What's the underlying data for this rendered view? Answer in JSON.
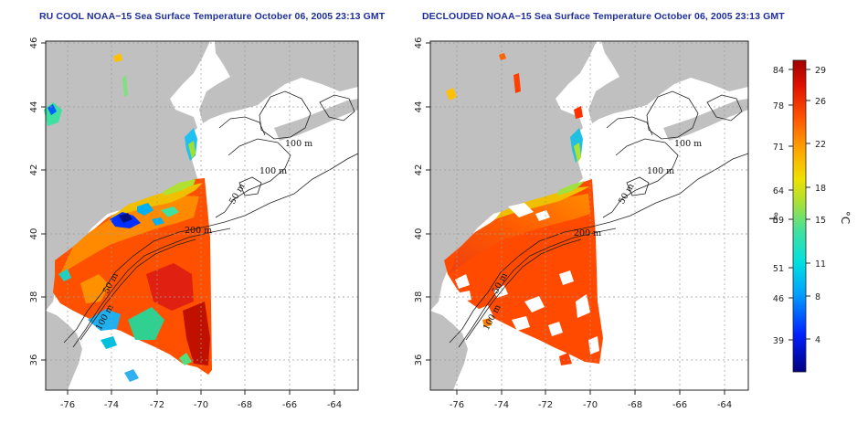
{
  "titles": {
    "left": "RU COOL NOAA−15 Sea Surface Temperature October 06, 2005 23:13 GMT",
    "right": "DECLOUDED NOAA−15 Sea Surface Temperature October 06, 2005 23:13 GMT"
  },
  "map": {
    "lon_ticks": [
      "-76",
      "-74",
      "-72",
      "-70",
      "-68",
      "-66",
      "-64"
    ],
    "lat_ticks": [
      "36",
      "38",
      "40",
      "42",
      "44",
      "46"
    ],
    "lon_range": [
      -77.2,
      -62.9
    ],
    "lat_range": [
      35.2,
      46.0
    ],
    "contour_labels": [
      "100 m",
      "100 m",
      "50 m",
      "200 m",
      "50 m",
      "100 m"
    ],
    "colors": {
      "land": "#c0c0c0",
      "ocean_no_data": "#ffffff",
      "contour": "#222222",
      "grid": "#9a9a9a"
    }
  },
  "colorbar": {
    "fahrenheit_labels": [
      "84",
      "78",
      "71",
      "64",
      "59",
      "51",
      "46",
      "39"
    ],
    "celsius_labels": [
      "29",
      "26",
      "22",
      "18",
      "15",
      "11",
      "8",
      "4"
    ],
    "unit_f": "°F",
    "unit_c": "°C",
    "range_c": [
      1,
      30
    ],
    "stops": [
      "#000080",
      "#0020ff",
      "#00a0ff",
      "#00e0e0",
      "#40e0a0",
      "#b0e030",
      "#f0e000",
      "#ffa000",
      "#ff5000",
      "#e01000",
      "#a00000"
    ]
  }
}
